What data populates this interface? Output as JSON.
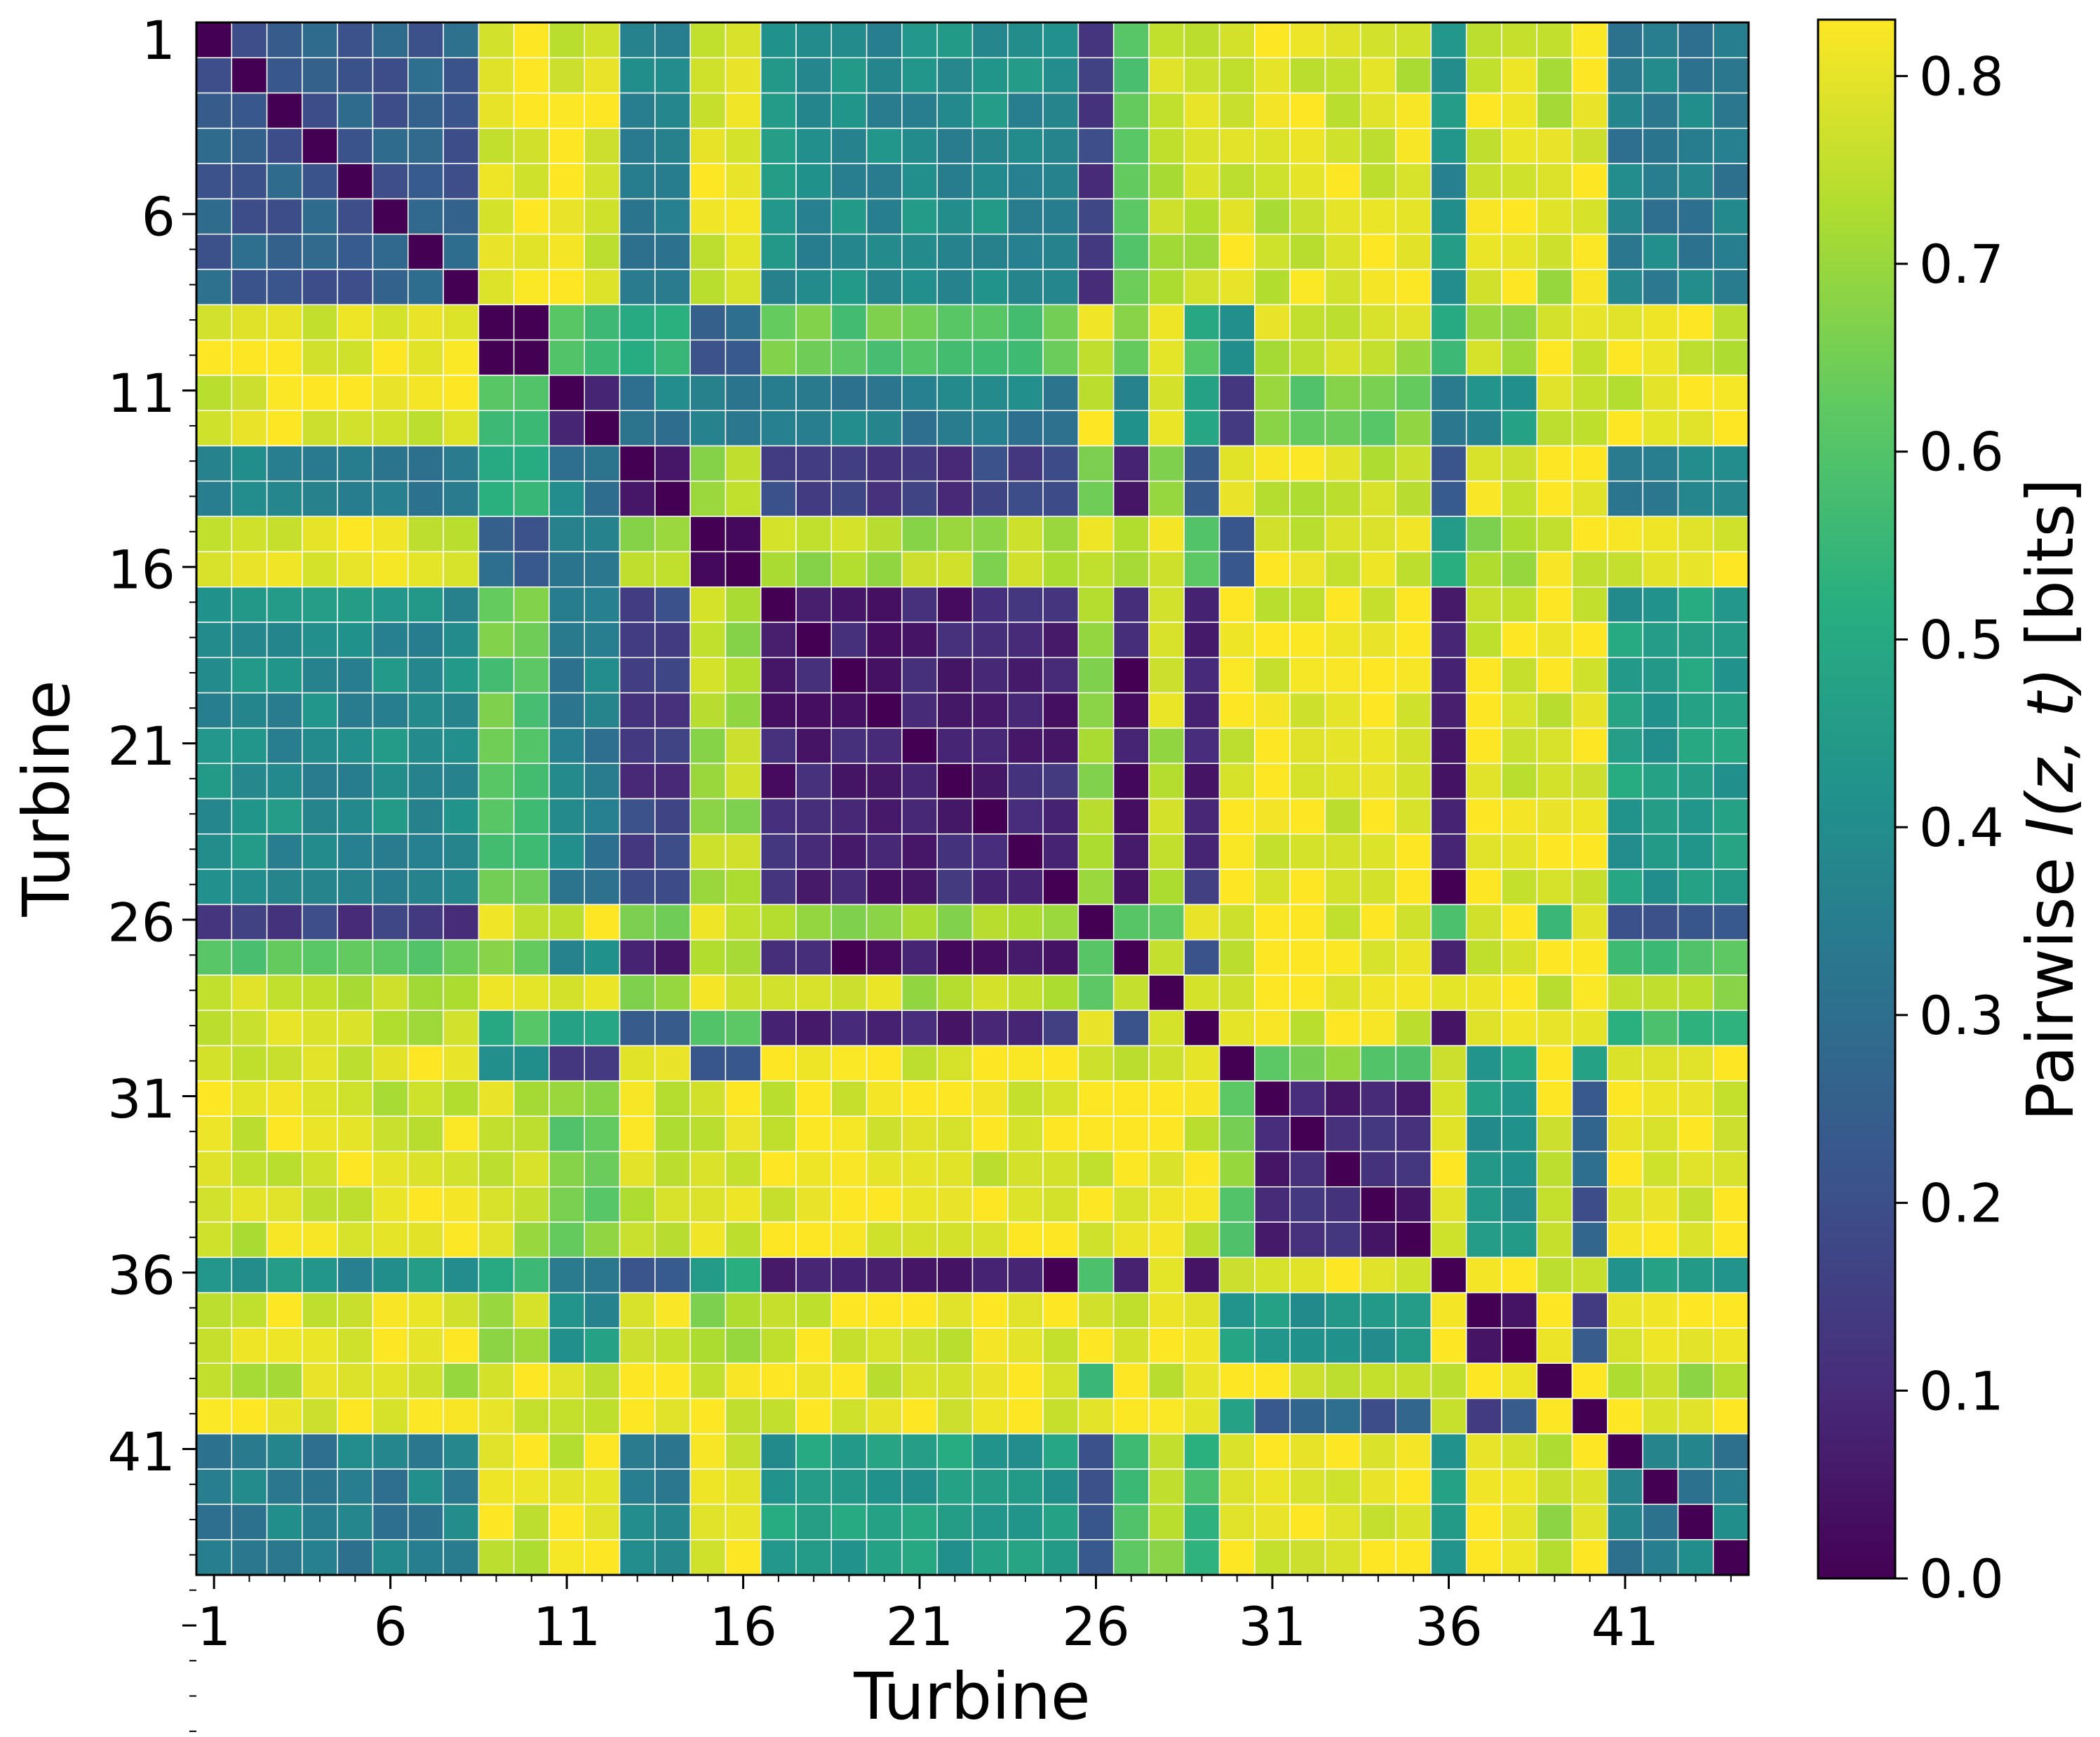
{
  "chart_data": {
    "type": "heatmap",
    "n_turbines": 44,
    "xlabel": "Turbine",
    "ylabel": "Turbine",
    "x_tick_labels": [
      "1",
      "6",
      "11",
      "16",
      "21",
      "26",
      "31",
      "36",
      "41"
    ],
    "y_tick_labels": [
      "1",
      "6",
      "11",
      "16",
      "21",
      "26",
      "31",
      "36",
      "41"
    ],
    "colorbar": {
      "label_prefix": "Pairwise ",
      "label_math": "I(z, t)",
      "label_suffix": " [bits]",
      "range": [
        0.0,
        0.83
      ],
      "ticks": [
        "0.0",
        "0.1",
        "0.2",
        "0.3",
        "0.4",
        "0.5",
        "0.6",
        "0.7",
        "0.8"
      ],
      "colormap": "viridis"
    },
    "groups": [
      [
        1,
        8
      ],
      [
        9,
        10
      ],
      [
        11,
        12
      ],
      [
        13,
        14
      ],
      [
        15,
        16
      ],
      [
        17,
        25
      ],
      [
        26,
        26
      ],
      [
        27,
        27
      ],
      [
        28,
        28
      ],
      [
        29,
        29
      ],
      [
        30,
        30
      ],
      [
        31,
        35
      ],
      [
        36,
        36
      ],
      [
        37,
        38
      ],
      [
        39,
        39
      ],
      [
        40,
        40
      ],
      [
        41,
        44
      ]
    ],
    "group_values": [
      [
        0.25,
        0.8,
        0.8,
        0.35,
        0.8,
        0.4,
        0.15,
        0.6,
        0.75,
        0.75,
        0.8,
        0.78,
        0.4,
        0.8,
        0.75,
        0.8,
        0.35
      ],
      [
        0.8,
        0.02,
        0.6,
        0.55,
        0.25,
        0.62,
        0.78,
        0.68,
        0.8,
        0.55,
        0.42,
        0.75,
        0.55,
        0.72,
        0.8,
        0.8,
        0.78
      ],
      [
        0.8,
        0.6,
        0.05,
        0.35,
        0.35,
        0.35,
        0.8,
        0.42,
        0.78,
        0.45,
        0.1,
        0.65,
        0.35,
        0.42,
        0.8,
        0.72,
        0.78
      ],
      [
        0.35,
        0.55,
        0.35,
        0.1,
        0.7,
        0.15,
        0.65,
        0.1,
        0.65,
        0.25,
        0.8,
        0.78,
        0.2,
        0.8,
        0.8,
        0.8,
        0.35
      ],
      [
        0.8,
        0.25,
        0.35,
        0.7,
        0.05,
        0.72,
        0.8,
        0.72,
        0.8,
        0.65,
        0.25,
        0.78,
        0.5,
        0.68,
        0.8,
        0.8,
        0.8
      ],
      [
        0.4,
        0.62,
        0.35,
        0.15,
        0.72,
        0.08,
        0.68,
        0.05,
        0.75,
        0.1,
        0.8,
        0.8,
        0.05,
        0.8,
        0.8,
        0.8,
        0.45
      ],
      [
        0.15,
        0.78,
        0.8,
        0.65,
        0.8,
        0.68,
        0.0,
        0.65,
        0.6,
        0.8,
        0.8,
        0.8,
        0.62,
        0.8,
        0.5,
        0.8,
        0.2
      ],
      [
        0.6,
        0.68,
        0.42,
        0.1,
        0.72,
        0.05,
        0.65,
        0.0,
        0.75,
        0.2,
        0.8,
        0.8,
        0.1,
        0.8,
        0.8,
        0.8,
        0.6
      ],
      [
        0.75,
        0.8,
        0.78,
        0.65,
        0.8,
        0.75,
        0.6,
        0.75,
        0.0,
        0.8,
        0.8,
        0.8,
        0.75,
        0.8,
        0.72,
        0.8,
        0.7
      ],
      [
        0.75,
        0.55,
        0.45,
        0.25,
        0.65,
        0.1,
        0.8,
        0.2,
        0.8,
        0.0,
        0.8,
        0.8,
        0.1,
        0.8,
        0.8,
        0.8,
        0.55
      ],
      [
        0.8,
        0.42,
        0.1,
        0.8,
        0.25,
        0.8,
        0.8,
        0.8,
        0.8,
        0.8,
        0.0,
        0.65,
        0.8,
        0.45,
        0.8,
        0.45,
        0.8
      ],
      [
        0.78,
        0.75,
        0.65,
        0.78,
        0.78,
        0.8,
        0.8,
        0.8,
        0.8,
        0.8,
        0.65,
        0.08,
        0.8,
        0.45,
        0.8,
        0.25,
        0.8
      ],
      [
        0.4,
        0.55,
        0.35,
        0.2,
        0.5,
        0.05,
        0.62,
        0.1,
        0.75,
        0.1,
        0.8,
        0.8,
        0.0,
        0.8,
        0.8,
        0.8,
        0.45
      ],
      [
        0.8,
        0.72,
        0.42,
        0.8,
        0.68,
        0.8,
        0.8,
        0.8,
        0.8,
        0.8,
        0.45,
        0.45,
        0.8,
        0.05,
        0.8,
        0.2,
        0.8
      ],
      [
        0.75,
        0.8,
        0.8,
        0.8,
        0.8,
        0.8,
        0.5,
        0.8,
        0.72,
        0.8,
        0.8,
        0.8,
        0.8,
        0.8,
        0.0,
        0.8,
        0.72
      ],
      [
        0.8,
        0.8,
        0.72,
        0.8,
        0.8,
        0.8,
        0.8,
        0.8,
        0.8,
        0.8,
        0.45,
        0.25,
        0.8,
        0.2,
        0.8,
        0.0,
        0.8
      ],
      [
        0.35,
        0.78,
        0.78,
        0.35,
        0.8,
        0.45,
        0.2,
        0.6,
        0.7,
        0.55,
        0.8,
        0.8,
        0.45,
        0.8,
        0.72,
        0.8,
        0.35
      ]
    ],
    "diagonal_value": 0.0
  }
}
